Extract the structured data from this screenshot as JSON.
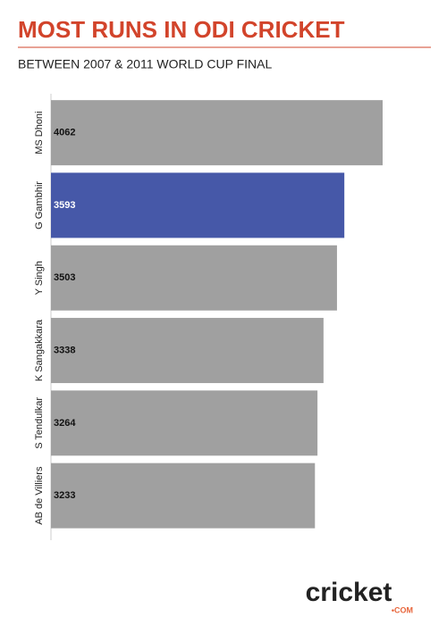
{
  "chart_data": {
    "type": "bar",
    "orientation": "horizontal",
    "title": "MOST RUNS IN ODI CRICKET",
    "subtitle": "BETWEEN 2007 & 2011 WORLD CUP FINAL",
    "categories": [
      "MS Dhoni",
      "G Gambhir",
      "Y Singh",
      "K Sangakkara",
      "S Tendulkar",
      "AB de Villiers"
    ],
    "values": [
      4062,
      3593,
      3503,
      3338,
      3264,
      3233
    ],
    "colors": [
      "#a0a0a0",
      "#4658a8",
      "#a0a0a0",
      "#a0a0a0",
      "#a0a0a0",
      "#a0a0a0"
    ],
    "title_color": "#d2442b"
  },
  "branding": {
    "name": "cricket",
    "suffix": "•COM"
  }
}
